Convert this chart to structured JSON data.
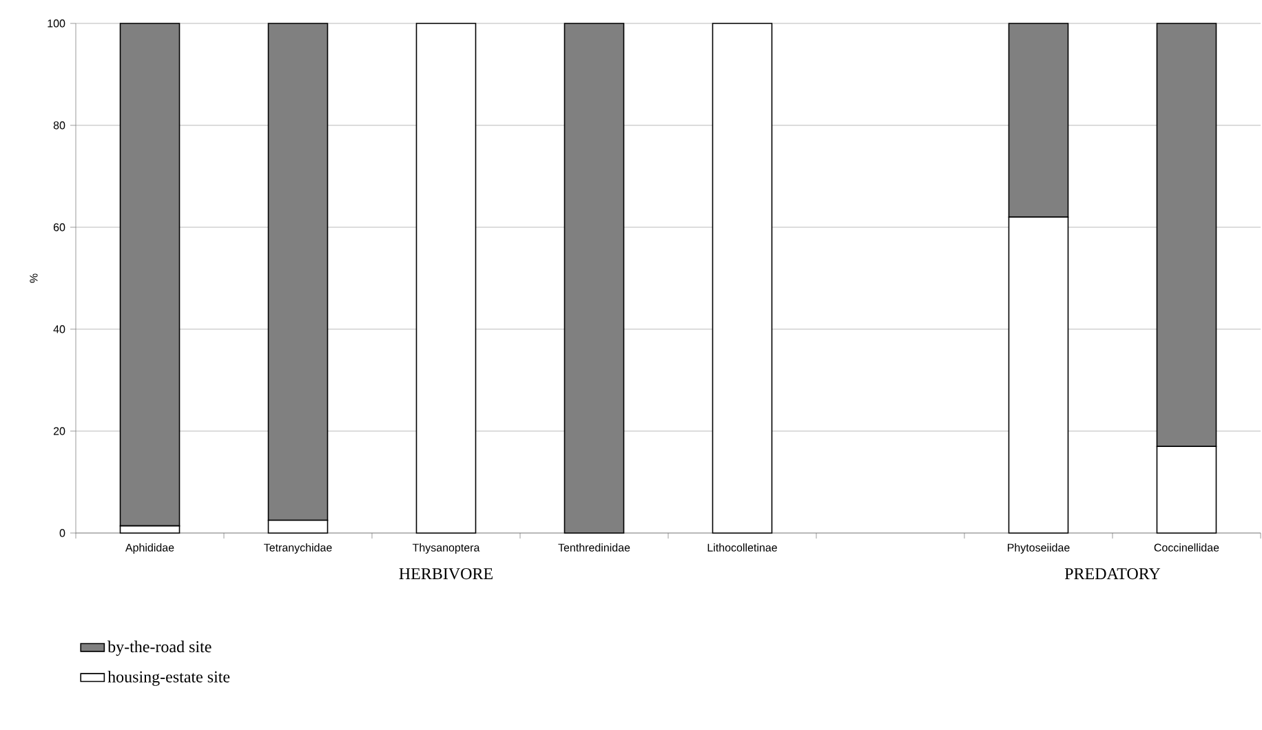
{
  "chart_data": {
    "type": "bar",
    "stacked": true,
    "ylabel": "%",
    "categories": [
      "Aphididae",
      "Tetranychidae",
      "Thysanoptera",
      "Tenthredinidae",
      "Lithocolletinae",
      null,
      "Phytoseiidae",
      "Coccinellidae"
    ],
    "series": [
      {
        "name": "housing-estate site",
        "color": "#ffffff",
        "values": [
          1.4,
          2.5,
          100,
          0,
          100,
          null,
          62,
          17
        ]
      },
      {
        "name": "by-the-road site",
        "color": "#808080",
        "values": [
          98.6,
          97.5,
          0,
          100,
          0,
          null,
          38,
          83
        ]
      }
    ],
    "ylim": [
      0,
      100
    ],
    "yticks": [
      0,
      20,
      40,
      60,
      80,
      100
    ],
    "grid": "y",
    "legend": "bottom left",
    "annotations": [
      "HERBIVORE",
      "PREDATORY"
    ]
  }
}
